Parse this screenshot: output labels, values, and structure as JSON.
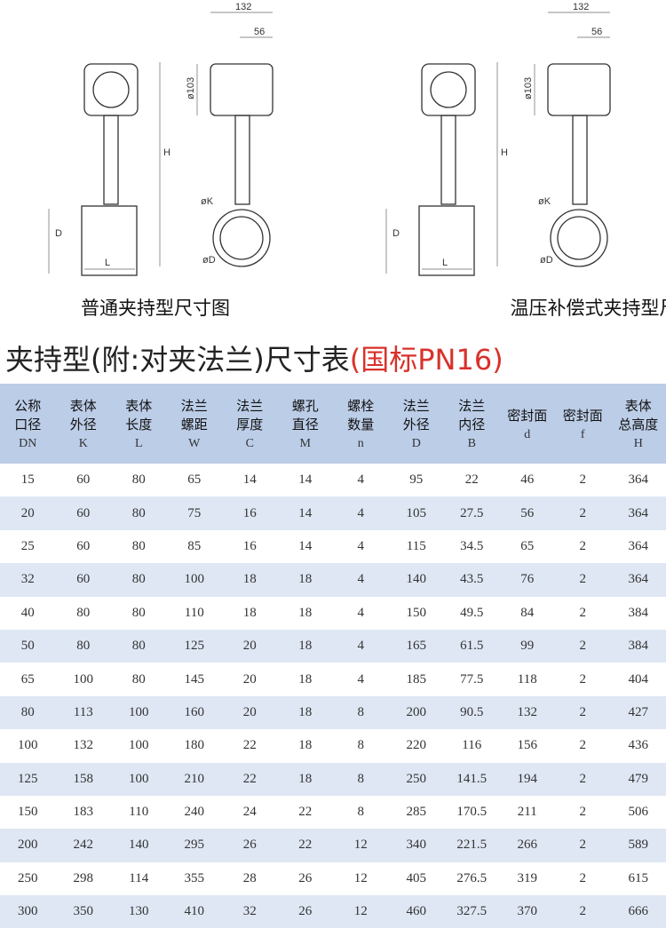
{
  "figures": [
    {
      "caption": "普通夹持型尺寸图",
      "labels": {
        "width": "132",
        "offset": "56",
        "dia": "ø103",
        "height": "H",
        "body": "D",
        "length": "L",
        "k": "øK",
        "d": "øD"
      }
    },
    {
      "caption": "温压补偿式夹持型尺寸图",
      "labels": {
        "width": "132",
        "offset": "56",
        "dia": "ø103",
        "height": "H",
        "body": "D",
        "length": "L",
        "k": "øK",
        "d": "øD"
      }
    }
  ],
  "title": {
    "main": "夹持型(附:对夹法兰)尺寸表",
    "note": "(国标PN16)"
  },
  "table": {
    "columns": [
      {
        "name": [
          "公称",
          "口径"
        ],
        "symbol": "DN"
      },
      {
        "name": [
          "表体",
          "外径"
        ],
        "symbol": "K"
      },
      {
        "name": [
          "表体",
          "长度"
        ],
        "symbol": "L"
      },
      {
        "name": [
          "法兰",
          "螺距"
        ],
        "symbol": "W"
      },
      {
        "name": [
          "法兰",
          "厚度"
        ],
        "symbol": "C"
      },
      {
        "name": [
          "螺孔",
          "直径"
        ],
        "symbol": "M"
      },
      {
        "name": [
          "螺栓",
          "数量"
        ],
        "symbol": "n"
      },
      {
        "name": [
          "法兰",
          "外径"
        ],
        "symbol": "D"
      },
      {
        "name": [
          "法兰",
          "内径"
        ],
        "symbol": "B"
      },
      {
        "name": [
          "密封面"
        ],
        "symbol": "d"
      },
      {
        "name": [
          "密封面"
        ],
        "symbol": "f"
      },
      {
        "name": [
          "表体",
          "总高度"
        ],
        "symbol": "H"
      }
    ],
    "rows": [
      [
        "15",
        "60",
        "80",
        "65",
        "14",
        "14",
        "4",
        "95",
        "22",
        "46",
        "2",
        "364"
      ],
      [
        "20",
        "60",
        "80",
        "75",
        "16",
        "14",
        "4",
        "105",
        "27.5",
        "56",
        "2",
        "364"
      ],
      [
        "25",
        "60",
        "80",
        "85",
        "16",
        "14",
        "4",
        "115",
        "34.5",
        "65",
        "2",
        "364"
      ],
      [
        "32",
        "60",
        "80",
        "100",
        "18",
        "18",
        "4",
        "140",
        "43.5",
        "76",
        "2",
        "364"
      ],
      [
        "40",
        "80",
        "80",
        "110",
        "18",
        "18",
        "4",
        "150",
        "49.5",
        "84",
        "2",
        "384"
      ],
      [
        "50",
        "80",
        "80",
        "125",
        "20",
        "18",
        "4",
        "165",
        "61.5",
        "99",
        "2",
        "384"
      ],
      [
        "65",
        "100",
        "80",
        "145",
        "20",
        "18",
        "4",
        "185",
        "77.5",
        "118",
        "2",
        "404"
      ],
      [
        "80",
        "113",
        "100",
        "160",
        "20",
        "18",
        "8",
        "200",
        "90.5",
        "132",
        "2",
        "427"
      ],
      [
        "100",
        "132",
        "100",
        "180",
        "22",
        "18",
        "8",
        "220",
        "116",
        "156",
        "2",
        "436"
      ],
      [
        "125",
        "158",
        "100",
        "210",
        "22",
        "18",
        "8",
        "250",
        "141.5",
        "194",
        "2",
        "479"
      ],
      [
        "150",
        "183",
        "110",
        "240",
        "24",
        "22",
        "8",
        "285",
        "170.5",
        "211",
        "2",
        "506"
      ],
      [
        "200",
        "242",
        "140",
        "295",
        "26",
        "22",
        "12",
        "340",
        "221.5",
        "266",
        "2",
        "589"
      ],
      [
        "250",
        "298",
        "114",
        "355",
        "28",
        "26",
        "12",
        "405",
        "276.5",
        "319",
        "2",
        "615"
      ],
      [
        "300",
        "350",
        "130",
        "410",
        "32",
        "26",
        "12",
        "460",
        "327.5",
        "370",
        "2",
        "666"
      ]
    ]
  }
}
